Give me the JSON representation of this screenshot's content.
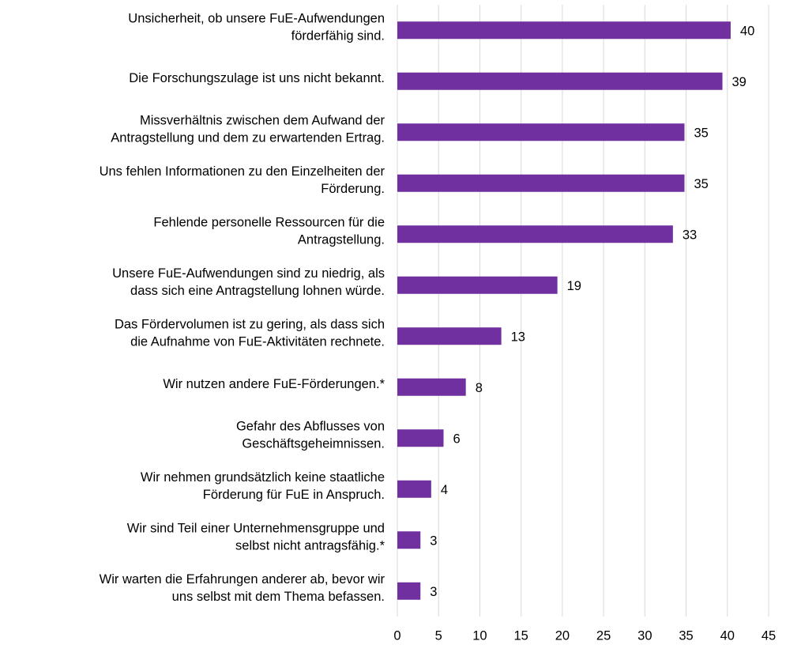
{
  "chart_data": {
    "type": "bar",
    "orientation": "horizontal",
    "categories": [
      "Unsicherheit, ob unsere FuE-Aufwendungen\nförderfähig sind.",
      "Die Forschungszulage ist uns nicht bekannt.",
      "Missverhältnis zwischen dem Aufwand der\nAntragstellung und dem zu erwartenden Ertrag.",
      "Uns fehlen Informationen zu den Einzelheiten der\nFörderung.",
      "Fehlende personelle Ressourcen für die\nAntragstellung.",
      "Unsere FuE-Aufwendungen sind zu niedrig, als\ndass sich eine Antragstellung lohnen würde.",
      "Das Fördervolumen ist zu gering, als dass sich\ndie Aufnahme von FuE-Aktivitäten rechnete.",
      "Wir nutzen andere FuE-Förderungen.*",
      "Gefahr des Abflusses von\nGeschäftsgeheimnissen.",
      "Wir nehmen grundsätzlich keine staatliche\nFörderung für FuE in Anspruch.",
      "Wir sind Teil einer Unternehmensgruppe und\nselbst nicht antragsfähig.*",
      "Wir warten die Erfahrungen anderer ab, bevor wir\nuns selbst mit dem Thema befassen."
    ],
    "values": [
      40.4,
      39.4,
      34.8,
      34.8,
      33.4,
      19.4,
      12.6,
      8.3,
      5.6,
      4.1,
      2.8,
      2.8
    ],
    "value_labels": [
      "40",
      "39",
      "35",
      "35",
      "33",
      "19",
      "13",
      "8",
      "6",
      "4",
      "3",
      "3"
    ],
    "color": "#7030a0",
    "xlim": [
      0,
      45
    ],
    "xticks": [
      0,
      5,
      10,
      15,
      20,
      25,
      30,
      35,
      40,
      45
    ],
    "grid": true
  }
}
